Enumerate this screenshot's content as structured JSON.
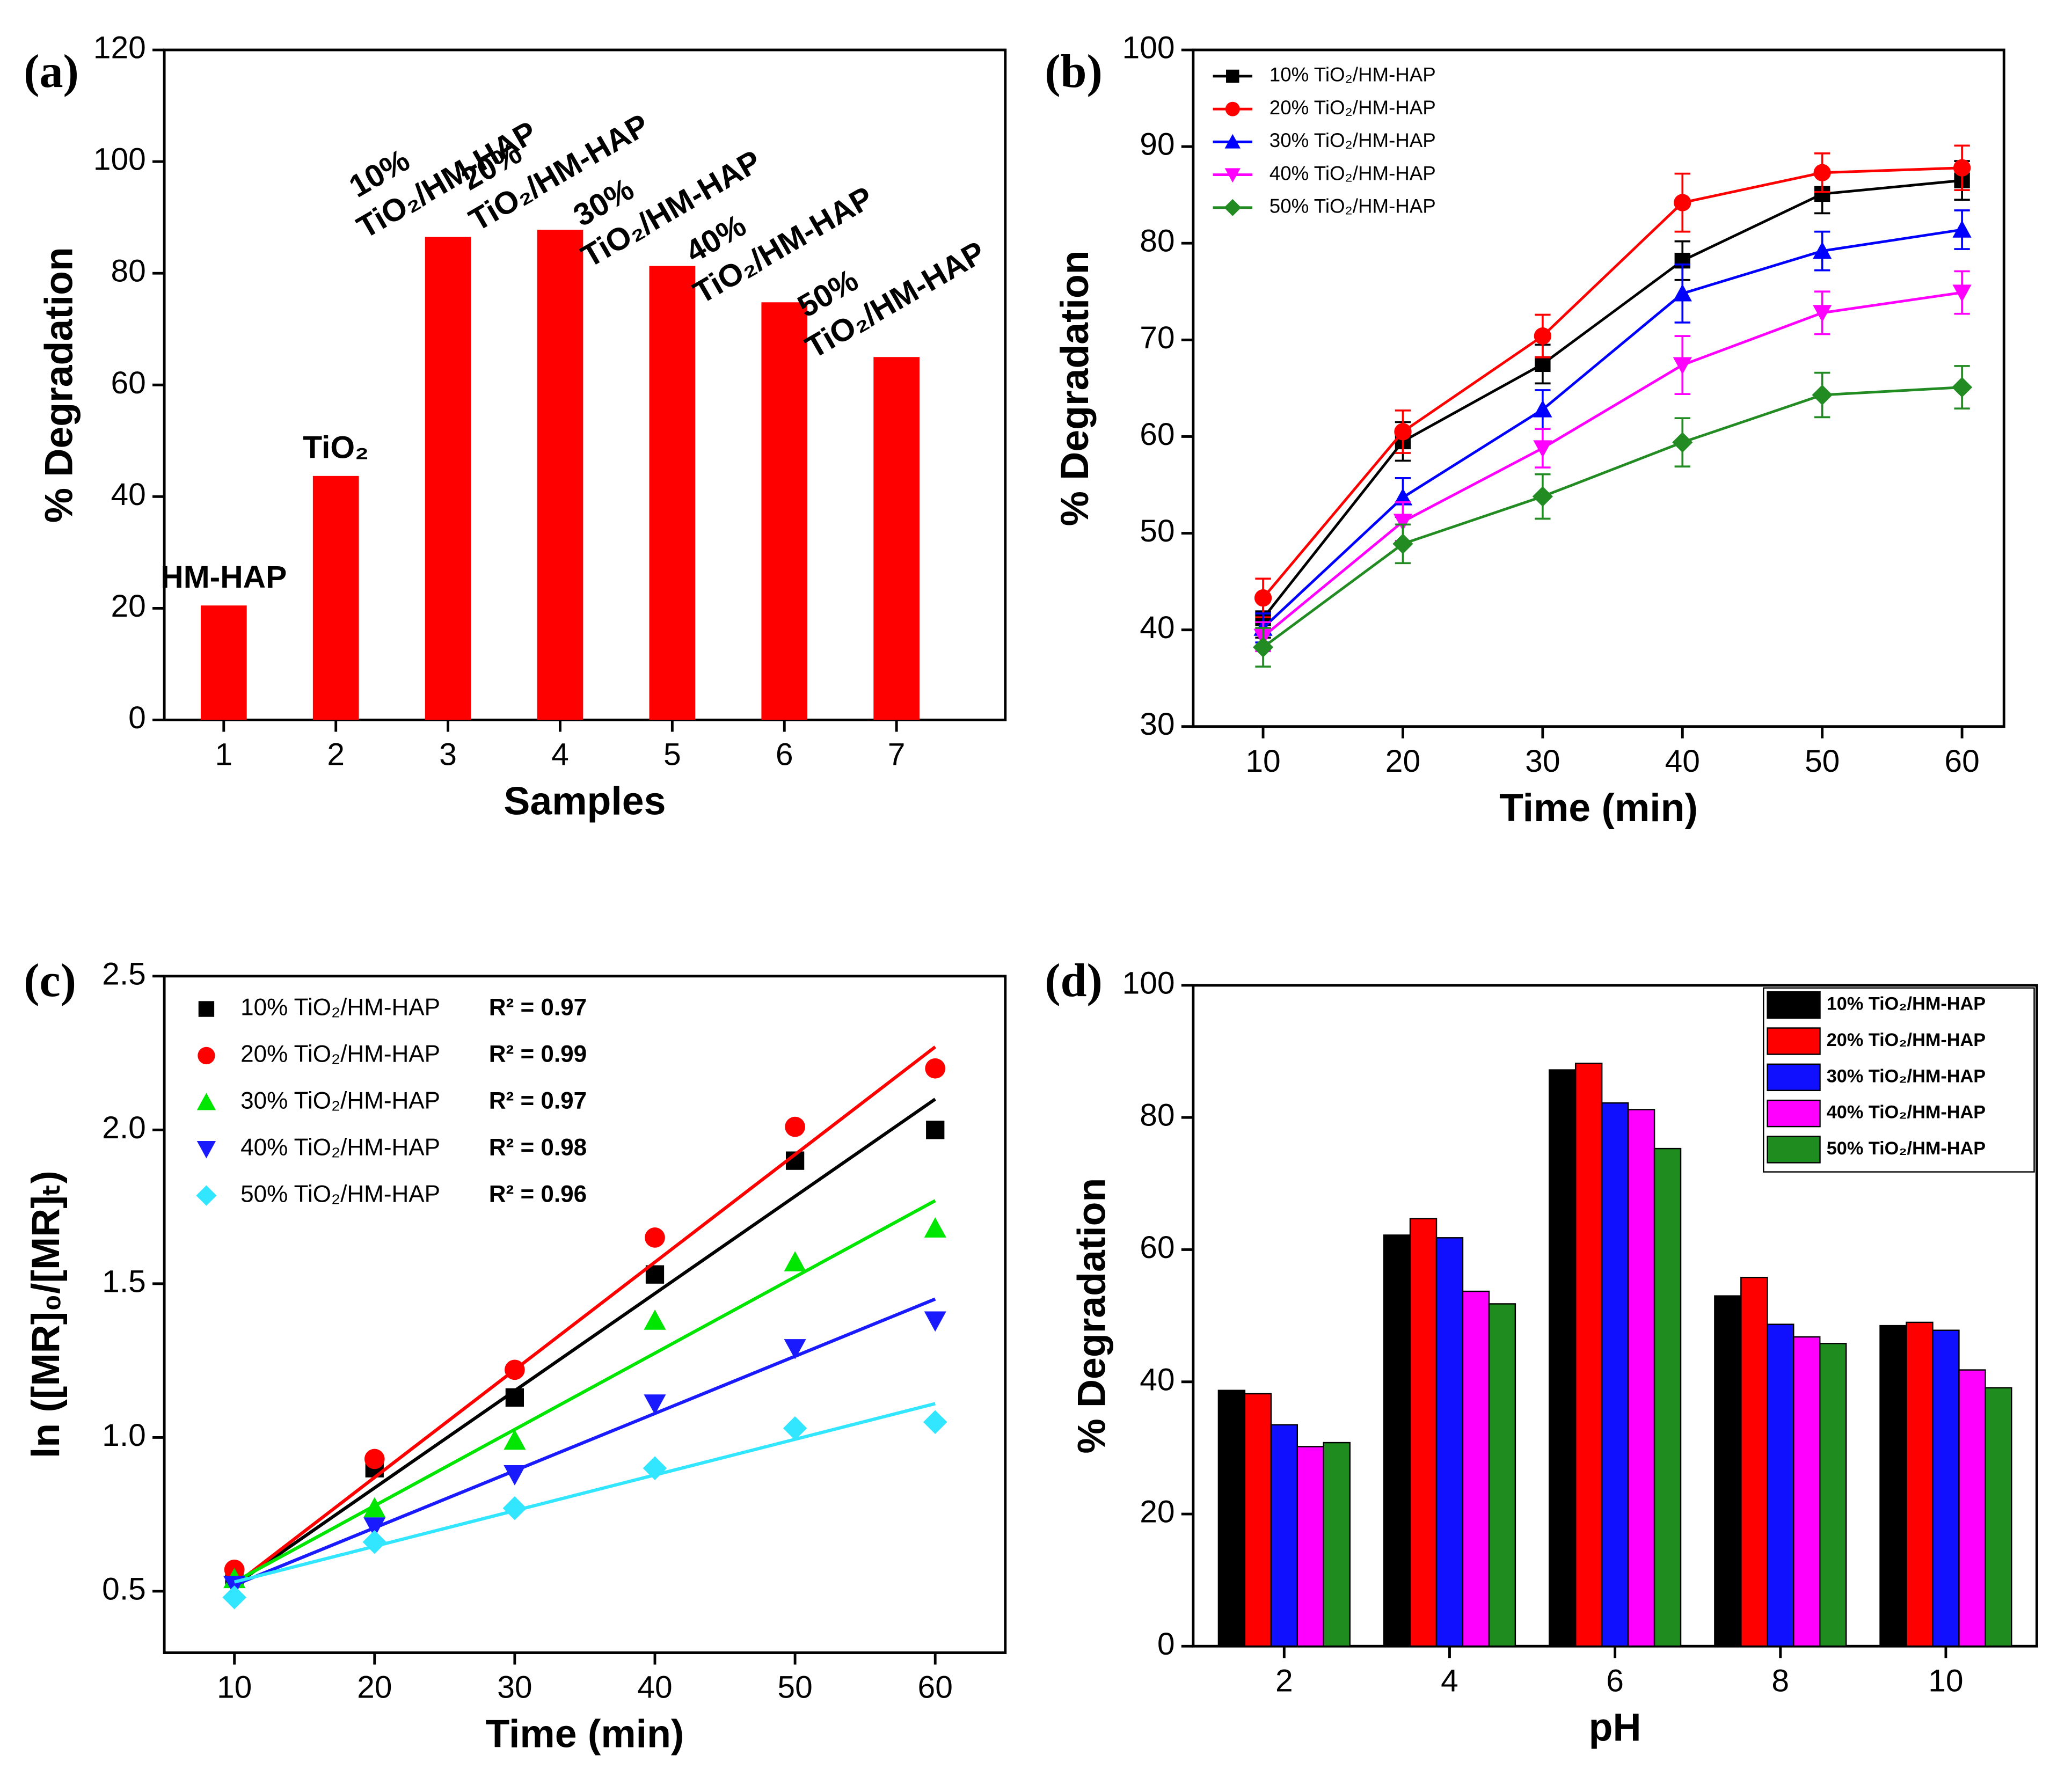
{
  "chart_data": [
    {
      "type": "bar",
      "panel": "(a)",
      "xlabel": "Samples",
      "ylabel": "% Degradation",
      "categories": [
        "1",
        "2",
        "3",
        "4",
        "5",
        "6",
        "7"
      ],
      "values": [
        20.5,
        43.7,
        86.5,
        87.8,
        81.3,
        74.8,
        65.0
      ],
      "bar_labels": [
        [
          "HM-HAP"
        ],
        [
          "TiO₂"
        ],
        [
          "10%",
          "TiO₂/HM-HAP"
        ],
        [
          "20%",
          "TiO₂/HM-HAP"
        ],
        [
          "30%",
          "TiO₂/HM-HAP"
        ],
        [
          "40%",
          "TiO₂/HM-HAP"
        ],
        [
          "50%",
          "TiO₂/HM-HAP"
        ]
      ],
      "color": "#ff0000",
      "ylim": [
        0,
        120
      ],
      "yticks": [
        0,
        20,
        40,
        60,
        80,
        100,
        120
      ]
    },
    {
      "type": "line",
      "panel": "(b)",
      "xlabel": "Time (min)",
      "ylabel": "% Degradation",
      "x": [
        10,
        20,
        30,
        40,
        50,
        60
      ],
      "xlim": [
        5,
        63
      ],
      "xticks": [
        10,
        20,
        30,
        40,
        50,
        60
      ],
      "ylim": [
        30,
        100
      ],
      "yticks": [
        30,
        40,
        50,
        60,
        70,
        80,
        90,
        100
      ],
      "series": [
        {
          "name": "10% TiO₂/HM-HAP",
          "color": "#000000",
          "marker": "square",
          "values": [
            41.2,
            59.5,
            67.5,
            78.2,
            85.1,
            86.5
          ],
          "errors": [
            2,
            2,
            2,
            2,
            2,
            2
          ]
        },
        {
          "name": "20% TiO₂/HM-HAP",
          "color": "#ff0000",
          "marker": "circle",
          "values": [
            43.3,
            60.5,
            70.4,
            84.2,
            87.3,
            87.8
          ],
          "errors": [
            2,
            2.2,
            2.2,
            3,
            2,
            2.3
          ]
        },
        {
          "name": "30% TiO₂/HM-HAP",
          "color": "#0000ff",
          "marker": "triangle-up",
          "values": [
            40.2,
            53.7,
            62.8,
            74.8,
            79.2,
            81.4
          ],
          "errors": [
            1.5,
            2,
            2,
            3,
            2,
            2
          ]
        },
        {
          "name": "40% TiO₂/HM-HAP",
          "color": "#ff00ff",
          "marker": "triangle-down",
          "values": [
            39.3,
            51.2,
            58.8,
            67.4,
            72.8,
            74.9
          ],
          "errors": [
            1.5,
            2,
            2,
            3,
            2.2,
            2.2
          ]
        },
        {
          "name": "50% TiO₂/HM-HAP",
          "color": "#228b22",
          "marker": "diamond",
          "values": [
            38.2,
            48.9,
            53.8,
            59.4,
            64.3,
            65.1
          ],
          "errors": [
            2,
            2,
            2.3,
            2.5,
            2.3,
            2.2
          ]
        }
      ]
    },
    {
      "type": "scatter",
      "panel": "(c)",
      "xlabel": "Time (min)",
      "ylabel": "ln ([MR]₀/[MR]ₜ)",
      "x": [
        10,
        20,
        30,
        40,
        50,
        60
      ],
      "fit_x": [
        10,
        60
      ],
      "xlim": [
        5,
        65
      ],
      "xticks": [
        10,
        20,
        30,
        40,
        50,
        60
      ],
      "ylim": [
        0.3,
        2.5
      ],
      "yticks": [
        0.5,
        {
          "value": 1,
          "label": "1.0"
        },
        1.5,
        {
          "value": 2,
          "label": "2.0"
        },
        2.5
      ],
      "series": [
        {
          "name": "10% TiO₂/HM-HAP",
          "r2": "R² = 0.97",
          "color": "#000000",
          "marker": "square",
          "values": [
            0.55,
            0.9,
            1.13,
            1.53,
            1.9,
            2.0
          ],
          "fit_values": [
            0.52,
            2.1
          ]
        },
        {
          "name": "20% TiO₂/HM-HAP",
          "r2": "R² = 0.99",
          "color": "#ff0000",
          "marker": "circle",
          "values": [
            0.57,
            0.93,
            1.22,
            1.65,
            2.01,
            2.2
          ],
          "fit_values": [
            0.52,
            2.27
          ]
        },
        {
          "name": "30% TiO₂/HM-HAP",
          "r2": "R² = 0.97",
          "color": "#00e600",
          "marker": "triangle-up",
          "values": [
            0.54,
            0.77,
            0.99,
            1.38,
            1.57,
            1.68
          ],
          "fit_values": [
            0.53,
            1.77
          ]
        },
        {
          "name": "40% TiO₂/HM-HAP",
          "r2": "R² = 0.98",
          "color": "#1a1aff",
          "marker": "triangle-down",
          "values": [
            0.52,
            0.71,
            0.88,
            1.11,
            1.29,
            1.38
          ],
          "fit_values": [
            0.52,
            1.45
          ]
        },
        {
          "name": "50% TiO₂/HM-HAP",
          "r2": "R² = 0.96",
          "color": "#33e6ff",
          "marker": "diamond",
          "values": [
            0.48,
            0.66,
            0.77,
            0.9,
            1.03,
            1.05
          ],
          "fit_values": [
            0.53,
            1.11
          ]
        }
      ]
    },
    {
      "type": "bar",
      "panel": "(d)",
      "xlabel": "pH",
      "ylabel": "% Degradation",
      "x": [
        2,
        4,
        6,
        8,
        10
      ],
      "xlim": [
        0.9,
        11.1
      ],
      "xticks": [
        2,
        4,
        6,
        8,
        10
      ],
      "ylim": [
        0,
        100
      ],
      "yticks": [
        0,
        20,
        40,
        60,
        80,
        100
      ],
      "series": [
        {
          "name": "10% TiO₂/HM-HAP",
          "color": "#000000",
          "values": [
            38.7,
            62.2,
            87.2,
            53.0,
            48.5
          ]
        },
        {
          "name": "20% TiO₂/HM-HAP",
          "color": "#ff0000",
          "values": [
            38.2,
            64.7,
            88.2,
            55.8,
            49.0
          ]
        },
        {
          "name": "30% TiO₂/HM-HAP",
          "color": "#1010ff",
          "values": [
            33.5,
            61.8,
            82.2,
            48.7,
            47.8
          ]
        },
        {
          "name": "40% TiO₂/HM-HAP",
          "color": "#ff00ff",
          "values": [
            30.2,
            53.7,
            81.2,
            46.8,
            41.8
          ]
        },
        {
          "name": "50% TiO₂/HM-HAP",
          "color": "#1e8c1e",
          "values": [
            30.8,
            51.8,
            75.3,
            45.8,
            39.1
          ]
        }
      ]
    }
  ]
}
